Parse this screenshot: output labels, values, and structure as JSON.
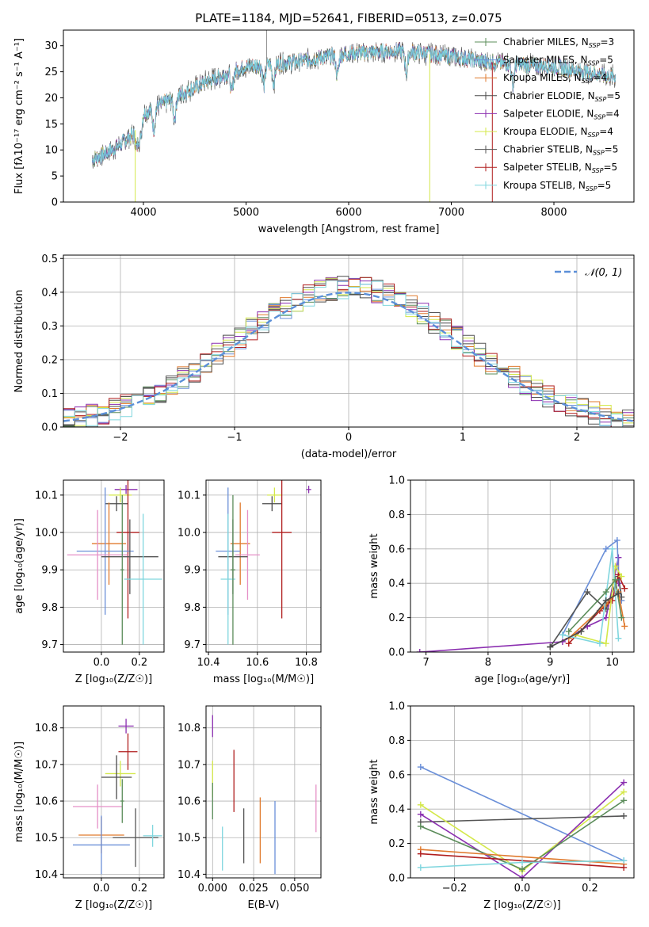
{
  "figure_title": "PLATE=1184, MJD=52641, FIBERID=0513, z=0.075",
  "colors": {
    "chabrier_miles": "#5b8c5a",
    "salpeter_miles": "#6a8fd8",
    "kroupa_miles": "#e07a2e",
    "chabrier_elodie": "#4a4a4a",
    "salpeter_elodie": "#8b2fb0",
    "kroupa_elodie": "#d4e84a",
    "chabrier_stelib": "#555555",
    "salpeter_stelib": "#b01e1e",
    "kroupa_stelib": "#7fd6de",
    "pink": "#e58fc7",
    "gauss": "#5b8fd8"
  },
  "chart_data": [
    {
      "id": "spectrum",
      "type": "line",
      "title": "PLATE=1184, MJD=52641, FIBERID=0513, z=0.075",
      "xlabel": "wavelength [Angstrom, rest frame]",
      "ylabel": "Flux [fλ10⁻¹⁷ erg cm⁻² s⁻¹ A⁻¹]",
      "xlim": [
        3220,
        8780
      ],
      "ylim": [
        0,
        33
      ],
      "xticks": [
        "4000",
        "5000",
        "6000",
        "7000",
        "8000"
      ],
      "yticks": [
        "0",
        "5",
        "10",
        "15",
        "20",
        "25",
        "30"
      ],
      "x_range": [
        3500,
        8600
      ],
      "continuum": [
        [
          3500,
          8
        ],
        [
          3700,
          10
        ],
        [
          3900,
          13
        ],
        [
          4000,
          17
        ],
        [
          4300,
          20
        ],
        [
          4600,
          23
        ],
        [
          5000,
          26
        ],
        [
          5500,
          27
        ],
        [
          6000,
          28.5
        ],
        [
          6500,
          29
        ],
        [
          7000,
          28
        ],
        [
          7300,
          27
        ],
        [
          7600,
          26.5
        ],
        [
          8000,
          26
        ],
        [
          8300,
          25
        ],
        [
          8600,
          24
        ]
      ],
      "absorption_features": [
        3934,
        3969,
        4101,
        4304,
        4861,
        5175,
        5270,
        5890,
        6563,
        7600
      ],
      "spikes": [
        [
          5200,
          33
        ],
        [
          6790,
          0
        ],
        [
          7400,
          0
        ],
        [
          3920,
          0
        ]
      ],
      "legend": [
        "Chabrier MILES, N_SSP=3",
        "Salpeter MILES, N_SSP=5",
        "Kroupa MILES, N_SSP=4",
        "Chabrier ELODIE, N_SSP=5",
        "Salpeter ELODIE, N_SSP=4",
        "Kroupa ELODIE, N_SSP=4",
        "Chabrier STELIB, N_SSP=5",
        "Salpeter STELIB, N_SSP=5",
        "Kroupa STELIB, N_SSP=5"
      ],
      "legend_placement": "upper-right",
      "grid": false
    },
    {
      "id": "residuals",
      "type": "histogram",
      "xlabel": "(data-model)/error",
      "ylabel": "Normed distribution",
      "xlim": [
        -2.5,
        2.5
      ],
      "ylim": [
        0,
        0.51
      ],
      "xticks": [
        "−2",
        "−1",
        "0",
        "1",
        "2"
      ],
      "yticks": [
        "0.0",
        "0.1",
        "0.2",
        "0.3",
        "0.4",
        "0.5"
      ],
      "bin_width": 0.1,
      "n_series": 9,
      "overlay": "standard normal N(0,1)",
      "legend": [
        "𝒩(0, 1)"
      ],
      "legend_placement": "upper-right",
      "grid": true
    },
    {
      "id": "age_vs_Z",
      "type": "errorbar",
      "xlabel": "Z [log₁₀(Z/Z☉)]",
      "ylabel": "age  [log₁₀(age/yr)]",
      "xlim": [
        -0.2,
        0.33
      ],
      "ylim": [
        9.68,
        10.14
      ],
      "xticks": [
        "0.0",
        "0.2"
      ],
      "yticks": [
        "9.7",
        "9.8",
        "9.9",
        "10.0",
        "10.1"
      ],
      "points": [
        {
          "x": 0.13,
          "y": 10.115,
          "xerr": 0.06,
          "yerr": 0.012,
          "c": "salpeter_elodie"
        },
        {
          "x": 0.1,
          "y": 10.1,
          "xerr": 0.06,
          "yerr": 0.02,
          "c": "kroupa_elodie"
        },
        {
          "x": 0.08,
          "y": 10.077,
          "xerr": 0.06,
          "yerr": 0.02,
          "c": "chabrier_elodie"
        },
        {
          "x": 0.14,
          "y": 10.0,
          "xerr": 0.06,
          "yerr": 0.23,
          "c": "salpeter_stelib"
        },
        {
          "x": 0.04,
          "y": 9.97,
          "xerr": 0.09,
          "yerr": 0.11,
          "c": "kroupa_miles"
        },
        {
          "x": 0.02,
          "y": 9.95,
          "xerr": 0.15,
          "yerr": 0.17,
          "c": "salpeter_miles"
        },
        {
          "x": -0.02,
          "y": 9.94,
          "xerr": 0.16,
          "yerr": 0.12,
          "c": "pink"
        },
        {
          "x": 0.15,
          "y": 9.935,
          "xerr": 0.15,
          "yerr": 0.1,
          "c": "chabrier_stelib"
        },
        {
          "x": 0.22,
          "y": 9.875,
          "xerr": 0.1,
          "yerr": 0.175,
          "c": "kroupa_stelib"
        },
        {
          "x": 0.11,
          "y": 9.9,
          "xerr": 0.01,
          "yerr": 0.2,
          "c": "chabrier_miles"
        }
      ],
      "grid": true
    },
    {
      "id": "age_vs_mass",
      "type": "errorbar",
      "xlabel": "mass [log₁₀(M/M☉)]",
      "ylabel": "",
      "xlim": [
        10.39,
        10.86
      ],
      "ylim": [
        9.68,
        10.14
      ],
      "xticks": [
        "10.4",
        "10.6",
        "10.8"
      ],
      "yticks": [
        "9.7",
        "9.8",
        "9.9",
        "10.0",
        "10.1"
      ],
      "points": [
        {
          "x": 10.81,
          "y": 10.115,
          "xerr": 0.01,
          "yerr": 0.01,
          "c": "salpeter_elodie"
        },
        {
          "x": 10.67,
          "y": 10.1,
          "xerr": 0.03,
          "yerr": 0.02,
          "c": "kroupa_elodie"
        },
        {
          "x": 10.66,
          "y": 10.077,
          "xerr": 0.04,
          "yerr": 0.02,
          "c": "chabrier_elodie"
        },
        {
          "x": 10.7,
          "y": 10.0,
          "xerr": 0.04,
          "yerr": 0.23,
          "c": "salpeter_stelib"
        },
        {
          "x": 10.53,
          "y": 9.97,
          "xerr": 0.04,
          "yerr": 0.11,
          "c": "kroupa_miles"
        },
        {
          "x": 10.48,
          "y": 9.95,
          "xerr": 0.05,
          "yerr": 0.17,
          "c": "salpeter_miles"
        },
        {
          "x": 10.56,
          "y": 9.94,
          "xerr": 0.05,
          "yerr": 0.12,
          "c": "pink"
        },
        {
          "x": 10.5,
          "y": 9.935,
          "xerr": 0.06,
          "yerr": 0.1,
          "c": "chabrier_stelib"
        },
        {
          "x": 10.48,
          "y": 9.875,
          "xerr": 0.03,
          "yerr": 0.175,
          "c": "kroupa_stelib"
        },
        {
          "x": 10.5,
          "y": 9.9,
          "xerr": 0.01,
          "yerr": 0.2,
          "c": "chabrier_miles"
        }
      ],
      "grid": true
    },
    {
      "id": "weight_vs_age",
      "type": "line",
      "xlabel": "age  [log₁₀(age/yr)]",
      "ylabel": "mass weight",
      "xlim": [
        6.75,
        10.35
      ],
      "ylim": [
        0,
        1.0
      ],
      "xticks": [
        "7",
        "8",
        "9",
        "10"
      ],
      "yticks": [
        "0.0",
        "0.2",
        "0.4",
        "0.6",
        "0.8",
        "1.0"
      ],
      "series": [
        {
          "c": "salpeter_elodie",
          "points": [
            [
              6.9,
              0.0
            ],
            [
              9.2,
              0.06
            ],
            [
              9.6,
              0.15
            ],
            [
              9.9,
              0.2
            ],
            [
              10.1,
              0.55
            ],
            [
              10.1,
              0.4
            ]
          ]
        },
        {
          "c": "salpeter_miles",
          "points": [
            [
              9.2,
              0.1
            ],
            [
              9.9,
              0.6
            ],
            [
              10.08,
              0.65
            ],
            [
              10.1,
              0.45
            ],
            [
              10.15,
              0.3
            ]
          ]
        },
        {
          "c": "chabrier_stelib",
          "points": [
            [
              9.0,
              0.03
            ],
            [
              9.6,
              0.35
            ],
            [
              9.9,
              0.25
            ],
            [
              10.1,
              0.44
            ],
            [
              10.15,
              0.32
            ]
          ]
        },
        {
          "c": "salpeter_stelib",
          "points": [
            [
              9.3,
              0.05
            ],
            [
              9.8,
              0.24
            ],
            [
              10.0,
              0.3
            ],
            [
              10.1,
              0.45
            ],
            [
              10.2,
              0.37
            ]
          ]
        },
        {
          "c": "kroupa_elodie",
          "points": [
            [
              9.4,
              0.1
            ],
            [
              9.9,
              0.05
            ],
            [
              10.05,
              0.5
            ],
            [
              10.15,
              0.44
            ]
          ]
        },
        {
          "c": "kroupa_miles",
          "points": [
            [
              9.3,
              0.08
            ],
            [
              9.9,
              0.28
            ],
            [
              10.1,
              0.35
            ],
            [
              10.2,
              0.15
            ]
          ]
        },
        {
          "c": "kroupa_stelib",
          "points": [
            [
              9.2,
              0.1
            ],
            [
              9.8,
              0.05
            ],
            [
              10.0,
              0.6
            ],
            [
              10.1,
              0.08
            ]
          ]
        },
        {
          "c": "chabrier_miles",
          "points": [
            [
              9.3,
              0.12
            ],
            [
              9.9,
              0.35
            ],
            [
              10.05,
              0.42
            ],
            [
              10.15,
              0.2
            ]
          ]
        },
        {
          "c": "chabrier_elodie",
          "points": [
            [
              9.0,
              0.03
            ],
            [
              9.5,
              0.12
            ],
            [
              9.9,
              0.3
            ],
            [
              10.1,
              0.34
            ]
          ]
        }
      ],
      "grid": true
    },
    {
      "id": "mass_vs_Z",
      "type": "errorbar",
      "xlabel": "Z [log₁₀(Z/Z☉)]",
      "ylabel": "mass [log₁₀(M/M☉)]",
      "xlim": [
        -0.2,
        0.33
      ],
      "ylim": [
        10.39,
        10.86
      ],
      "xticks": [
        "0.0",
        "0.2"
      ],
      "yticks": [
        "10.4",
        "10.5",
        "10.6",
        "10.7",
        "10.8"
      ],
      "points": [
        {
          "x": 0.13,
          "y": 10.805,
          "xerr": 0.04,
          "yerr": 0.02,
          "c": "salpeter_elodie"
        },
        {
          "x": 0.14,
          "y": 10.735,
          "xerr": 0.05,
          "yerr": 0.05,
          "c": "salpeter_stelib"
        },
        {
          "x": 0.1,
          "y": 10.675,
          "xerr": 0.08,
          "yerr": 0.035,
          "c": "kroupa_elodie"
        },
        {
          "x": 0.08,
          "y": 10.665,
          "xerr": 0.08,
          "yerr": 0.06,
          "c": "chabrier_elodie"
        },
        {
          "x": -0.02,
          "y": 10.585,
          "xerr": 0.13,
          "yerr": 0.06,
          "c": "pink"
        },
        {
          "x": 0.0,
          "y": 10.507,
          "xerr": 0.12,
          "yerr": 0.05,
          "c": "kroupa_miles"
        },
        {
          "x": 0.18,
          "y": 10.5,
          "xerr": 0.12,
          "yerr": 0.08,
          "c": "chabrier_stelib"
        },
        {
          "x": 0.27,
          "y": 10.505,
          "xerr": 0.05,
          "yerr": 0.03,
          "c": "kroupa_stelib"
        },
        {
          "x": 0.0,
          "y": 10.48,
          "xerr": 0.15,
          "yerr": 0.08,
          "c": "salpeter_miles"
        },
        {
          "x": 0.11,
          "y": 10.6,
          "xerr": 0.01,
          "yerr": 0.06,
          "c": "chabrier_miles"
        }
      ],
      "grid": true
    },
    {
      "id": "mass_vs_ebv",
      "type": "errorbar",
      "xlabel": "E(B-V)",
      "ylabel": "",
      "xlim": [
        -0.004,
        0.066
      ],
      "ylim": [
        10.39,
        10.86
      ],
      "xticks": [
        "0.000",
        "0.025",
        "0.050"
      ],
      "yticks": [
        "10.4",
        "10.5",
        "10.6",
        "10.7",
        "10.8"
      ],
      "points": [
        {
          "x": 0.0,
          "y": 10.805,
          "xerr": 0.0,
          "yerr": 0.03,
          "c": "salpeter_elodie"
        },
        {
          "x": 0.0,
          "y": 10.66,
          "xerr": 0.0,
          "yerr": 0.05,
          "c": "kroupa_elodie"
        },
        {
          "x": 0.0,
          "y": 10.6,
          "xerr": 0.0,
          "yerr": 0.05,
          "c": "chabrier_miles"
        },
        {
          "x": 0.006,
          "y": 10.47,
          "xerr": 0.0,
          "yerr": 0.06,
          "c": "kroupa_stelib"
        },
        {
          "x": 0.013,
          "y": 10.655,
          "xerr": 0.0,
          "yerr": 0.085,
          "c": "salpeter_stelib"
        },
        {
          "x": 0.019,
          "y": 10.505,
          "xerr": 0.0,
          "yerr": 0.075,
          "c": "chabrier_stelib"
        },
        {
          "x": 0.029,
          "y": 10.52,
          "xerr": 0.0,
          "yerr": 0.09,
          "c": "kroupa_miles"
        },
        {
          "x": 0.038,
          "y": 10.5,
          "xerr": 0.0,
          "yerr": 0.1,
          "c": "salpeter_miles"
        },
        {
          "x": 0.063,
          "y": 10.58,
          "xerr": 0.0,
          "yerr": 0.065,
          "c": "pink"
        }
      ],
      "grid": true
    },
    {
      "id": "weight_vs_Z",
      "type": "line",
      "xlabel": "Z [log₁₀(Z/Z☉)]",
      "ylabel": "mass weight",
      "xlim": [
        -0.33,
        0.33
      ],
      "ylim": [
        0,
        1.0
      ],
      "xticks": [
        "−0.2",
        "0.0",
        "0.2"
      ],
      "yticks": [
        "0.0",
        "0.2",
        "0.4",
        "0.6",
        "0.8",
        "1.0"
      ],
      "series": [
        {
          "c": "salpeter_miles",
          "points": [
            [
              -0.3,
              0.645
            ],
            [
              0.3,
              0.1
            ]
          ]
        },
        {
          "c": "chabrier_stelib",
          "points": [
            [
              -0.3,
              0.325
            ],
            [
              0.3,
              0.36
            ]
          ]
        },
        {
          "c": "kroupa_elodie",
          "points": [
            [
              -0.3,
              0.425
            ],
            [
              0.0,
              0.04
            ],
            [
              0.3,
              0.5
            ]
          ]
        },
        {
          "c": "salpeter_elodie",
          "points": [
            [
              -0.3,
              0.37
            ],
            [
              0.0,
              0.0
            ],
            [
              0.3,
              0.555
            ]
          ]
        },
        {
          "c": "chabrier_miles",
          "points": [
            [
              -0.3,
              0.3
            ],
            [
              0.0,
              0.05
            ],
            [
              0.3,
              0.45
            ]
          ]
        },
        {
          "c": "kroupa_miles",
          "points": [
            [
              -0.3,
              0.165
            ],
            [
              0.3,
              0.08
            ]
          ]
        },
        {
          "c": "salpeter_stelib",
          "points": [
            [
              -0.3,
              0.14
            ],
            [
              0.3,
              0.06
            ]
          ]
        },
        {
          "c": "kroupa_stelib",
          "points": [
            [
              -0.3,
              0.06
            ],
            [
              0.0,
              0.09
            ],
            [
              0.3,
              0.1
            ]
          ]
        }
      ],
      "grid": true
    }
  ]
}
